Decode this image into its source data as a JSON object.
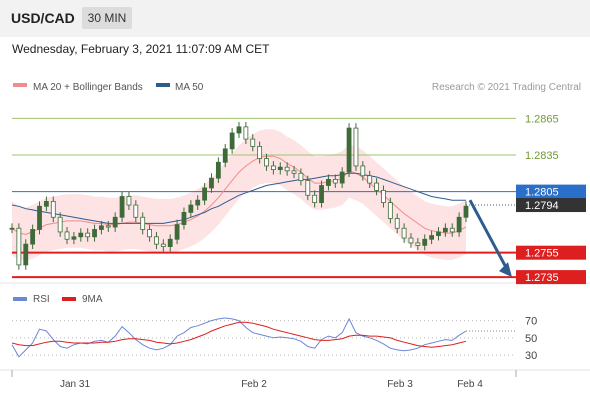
{
  "header": {
    "pair": "USD/CAD",
    "timeframe": "30 MIN",
    "timestamp": "Wednesday, February 3, 2021 11:07:09 AM CET"
  },
  "credit": "Research © 2021 Trading Central",
  "colors": {
    "ma20": "#f08c8c",
    "ma50": "#2e5c8f",
    "band_fill": "#fde3e3",
    "green_level": "#9dc46b",
    "blue_level": "#2a6fc9",
    "red_level": "#dd1f1f",
    "candle": "#3f6b3a",
    "rsi": "#6d86d6",
    "rsi_ma": "#dd1f1f",
    "arrow": "#2e5c8f"
  },
  "chart_data": [
    {
      "type": "candlestick",
      "name": "price",
      "legend": [
        "MA 20 + Bollinger Bands",
        "MA 50"
      ],
      "x_ticks": [
        "Jan 31",
        "Feb 2",
        "Feb 3",
        "Feb 4"
      ],
      "ylim": [
        1.2731,
        1.288
      ],
      "levels": [
        {
          "value": 1.2865,
          "label": "1.2865",
          "kind": "resistance"
        },
        {
          "value": 1.2835,
          "label": "1.2835",
          "kind": "resistance"
        },
        {
          "value": 1.2805,
          "label": "1.2805",
          "kind": "pivot"
        },
        {
          "value": 1.2755,
          "label": "1.2755",
          "kind": "support"
        },
        {
          "value": 1.2735,
          "label": "1.2735",
          "kind": "support"
        }
      ],
      "last_price": {
        "value": 1.2794,
        "label": "1.2794"
      },
      "projection": {
        "from": 1.2798,
        "to": 1.2735
      },
      "close": [
        1.2775,
        1.2745,
        1.2762,
        1.2774,
        1.2793,
        1.2797,
        1.2784,
        1.2772,
        1.2766,
        1.2768,
        1.2771,
        1.2768,
        1.2774,
        1.2777,
        1.2776,
        1.2784,
        1.2801,
        1.2794,
        1.2784,
        1.2774,
        1.2768,
        1.2762,
        1.276,
        1.2766,
        1.2778,
        1.2788,
        1.2794,
        1.2798,
        1.2808,
        1.2816,
        1.2829,
        1.284,
        1.2853,
        1.2858,
        1.2848,
        1.2842,
        1.2832,
        1.2826,
        1.2823,
        1.2825,
        1.2822,
        1.282,
        1.2814,
        1.2802,
        1.2796,
        1.281,
        1.2815,
        1.2812,
        1.2821,
        1.2857,
        1.2826,
        1.2818,
        1.2812,
        1.2806,
        1.2796,
        1.2783,
        1.2775,
        1.2767,
        1.2763,
        1.2761,
        1.2766,
        1.2769,
        1.2772,
        1.2775,
        1.2772,
        1.2784,
        1.2793
      ],
      "ma20": [
        1.2775,
        1.2771,
        1.277,
        1.2772,
        1.2775,
        1.2778,
        1.2779,
        1.278,
        1.2781,
        1.2781,
        1.2781,
        1.278,
        1.2779,
        1.2779,
        1.2778,
        1.2778,
        1.2779,
        1.278,
        1.278,
        1.2779,
        1.2778,
        1.2777,
        1.2777,
        1.2777,
        1.2778,
        1.278,
        1.2782,
        1.2785,
        1.2789,
        1.2794,
        1.28,
        1.2807,
        1.2814,
        1.2821,
        1.2826,
        1.283,
        1.2833,
        1.2834,
        1.2834,
        1.2832,
        1.2828,
        1.2825,
        1.2821,
        1.2816,
        1.2812,
        1.2812,
        1.2813,
        1.2814,
        1.2816,
        1.2822,
        1.282,
        1.2817,
        1.2812,
        1.2807,
        1.2802,
        1.2797,
        1.2792,
        1.2787,
        1.2783,
        1.2779,
        1.2775,
        1.2773,
        1.2772,
        1.2771,
        1.2771,
        1.2773,
        1.2776
      ],
      "ma50": [
        1.2794,
        1.2793,
        1.2791,
        1.279,
        1.2789,
        1.2788,
        1.2787,
        1.2786,
        1.2785,
        1.2784,
        1.2783,
        1.2782,
        1.2781,
        1.278,
        1.2779,
        1.2779,
        1.2779,
        1.2779,
        1.2779,
        1.2779,
        1.2779,
        1.2779,
        1.2779,
        1.278,
        1.2781,
        1.2782,
        1.2784,
        1.2786,
        1.2788,
        1.2791,
        1.2793,
        1.2796,
        1.2799,
        1.2802,
        1.2804,
        1.2806,
        1.2808,
        1.281,
        1.2811,
        1.2812,
        1.2813,
        1.2814,
        1.2815,
        1.2815,
        1.2816,
        1.2817,
        1.2818,
        1.2818,
        1.2819,
        1.282,
        1.282,
        1.2819,
        1.2818,
        1.2817,
        1.2815,
        1.2813,
        1.2811,
        1.2809,
        1.2807,
        1.2805,
        1.2803,
        1.2801,
        1.28,
        1.2799,
        1.2798,
        1.2798,
        1.2798
      ],
      "band_width": 0.0022
    },
    {
      "type": "line",
      "name": "rsi-panel",
      "legend": [
        "RSI",
        "9MA"
      ],
      "yticks": [
        70,
        50,
        30
      ],
      "ylim": [
        15,
        80
      ],
      "series": [
        {
          "name": "RSI",
          "values": [
            42,
            28,
            36,
            44,
            60,
            58,
            48,
            40,
            38,
            42,
            44,
            43,
            46,
            47,
            45,
            52,
            63,
            56,
            48,
            42,
            38,
            36,
            38,
            42,
            52,
            56,
            62,
            64,
            67,
            70,
            72,
            73,
            72,
            70,
            62,
            56,
            54,
            52,
            50,
            51,
            50,
            49,
            46,
            40,
            38,
            48,
            52,
            50,
            56,
            72,
            56,
            52,
            50,
            47,
            43,
            38,
            36,
            35,
            36,
            38,
            42,
            44,
            46,
            48,
            47,
            53,
            58
          ]
        },
        {
          "name": "9MA",
          "values": [
            44,
            42,
            41,
            41,
            43,
            45,
            46,
            46,
            45,
            44,
            44,
            44,
            44,
            45,
            45,
            46,
            48,
            49,
            49,
            48,
            47,
            45,
            44,
            43,
            44,
            46,
            48,
            51,
            54,
            58,
            61,
            64,
            66,
            68,
            68,
            67,
            65,
            63,
            60,
            58,
            56,
            54,
            52,
            50,
            48,
            47,
            47,
            48,
            49,
            52,
            53,
            53,
            52,
            52,
            51,
            50,
            47,
            45,
            43,
            41,
            40,
            39,
            40,
            41,
            42,
            44,
            46
          ]
        }
      ]
    }
  ]
}
